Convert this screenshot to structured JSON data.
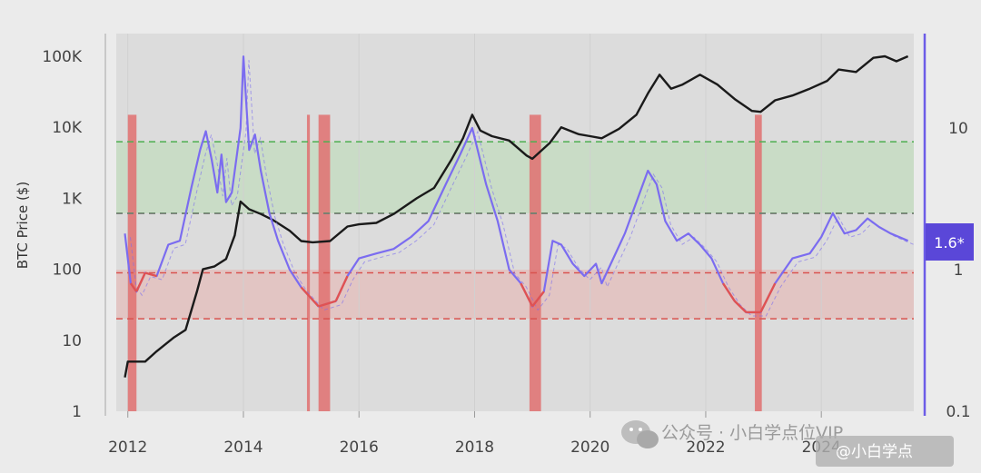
{
  "chart_data": {
    "type": "line",
    "ylabel": "BTC Price ($)",
    "y_left_scale": "log",
    "y_left_ticks": [
      "1",
      "10",
      "100",
      "1K",
      "10K",
      "100K"
    ],
    "y_right_scale": "log",
    "y_right_ticks": [
      "0.1",
      "1",
      "10"
    ],
    "x_ticks": [
      "2012",
      "2014",
      "2016",
      "2018",
      "2020",
      "2022",
      "2024"
    ],
    "current_value_label": "1.6*",
    "bands": {
      "upper_green": [
        2.5,
        8
      ],
      "lower_red": [
        0.45,
        1.0
      ]
    },
    "dashed_levels_right": [
      8,
      2.5,
      0.95,
      0.45
    ],
    "gray_reference_line_right": 1.6,
    "series": [
      {
        "color": "#1a1a1a",
        "axis": "left",
        "x": [
          2011.95,
          2012.0,
          2012.1,
          2012.3,
          2012.5,
          2012.8,
          2013.0,
          2013.2,
          2013.3,
          2013.5,
          2013.7,
          2013.85,
          2013.95,
          2014.1,
          2014.3,
          2014.5,
          2014.8,
          2015.0,
          2015.2,
          2015.5,
          2015.8,
          2016.0,
          2016.3,
          2016.6,
          2017.0,
          2017.3,
          2017.6,
          2017.8,
          2017.96,
          2018.1,
          2018.3,
          2018.6,
          2018.9,
          2019.0,
          2019.3,
          2019.5,
          2019.8,
          2020.0,
          2020.2,
          2020.5,
          2020.8,
          2021.0,
          2021.2,
          2021.4,
          2021.6,
          2021.9,
          2022.2,
          2022.5,
          2022.8,
          2022.95,
          2023.2,
          2023.5,
          2023.8,
          2024.1,
          2024.3,
          2024.6,
          2024.9,
          2025.1,
          2025.3,
          2025.5
        ],
        "y": [
          3,
          5,
          5,
          5,
          7,
          11,
          14,
          50,
          100,
          110,
          140,
          300,
          900,
          700,
          600,
          500,
          350,
          250,
          240,
          250,
          400,
          430,
          450,
          600,
          1000,
          1400,
          3500,
          7000,
          15000,
          9000,
          7500,
          6500,
          4000,
          3600,
          6000,
          10000,
          8000,
          7500,
          7000,
          9500,
          15000,
          30000,
          55000,
          35000,
          40000,
          55000,
          40000,
          25000,
          17000,
          16500,
          24000,
          28000,
          35000,
          45000,
          65000,
          60000,
          95000,
          100000,
          85000,
          100000
        ]
      },
      {
        "color": "#7b6cf0",
        "axis": "right",
        "x": [
          2011.95,
          2012.05,
          2012.15,
          2012.3,
          2012.5,
          2012.7,
          2012.9,
          2013.1,
          2013.25,
          2013.35,
          2013.45,
          2013.55,
          2013.62,
          2013.7,
          2013.8,
          2013.95,
          2014.0,
          2014.1,
          2014.2,
          2014.3,
          2014.45,
          2014.6,
          2014.8,
          2015.0,
          2015.3,
          2015.6,
          2015.8,
          2016.0,
          2016.3,
          2016.6,
          2016.9,
          2017.2,
          2017.5,
          2017.75,
          2017.96,
          2018.2,
          2018.4,
          2018.6,
          2018.8,
          2019.0,
          2019.2,
          2019.35,
          2019.5,
          2019.7,
          2019.9,
          2020.1,
          2020.2,
          2020.4,
          2020.6,
          2020.8,
          2021.0,
          2021.15,
          2021.3,
          2021.5,
          2021.7,
          2021.9,
          2022.1,
          2022.3,
          2022.5,
          2022.7,
          2022.95,
          2023.2,
          2023.5,
          2023.8,
          2024.0,
          2024.2,
          2024.4,
          2024.6,
          2024.8,
          2025.0,
          2025.2,
          2025.5
        ],
        "y": [
          1.8,
          0.8,
          0.7,
          0.95,
          0.9,
          1.5,
          1.6,
          3.8,
          7.0,
          9.5,
          6.0,
          3.5,
          6.5,
          3.0,
          3.5,
          10.0,
          32.0,
          7.0,
          9.0,
          5.0,
          2.5,
          1.6,
          1.0,
          0.75,
          0.55,
          0.6,
          0.9,
          1.2,
          1.3,
          1.4,
          1.7,
          2.2,
          4.0,
          6.5,
          10.0,
          4.0,
          2.2,
          1.0,
          0.8,
          0.55,
          0.7,
          1.6,
          1.5,
          1.1,
          0.9,
          1.1,
          0.8,
          1.2,
          1.8,
          3.0,
          5.0,
          4.0,
          2.2,
          1.6,
          1.8,
          1.5,
          1.2,
          0.8,
          0.6,
          0.5,
          0.5,
          0.8,
          1.2,
          1.3,
          1.7,
          2.5,
          1.8,
          1.9,
          2.3,
          2.0,
          1.8,
          1.6
        ]
      }
    ],
    "highlight_periods": [
      [
        2012.0,
        2012.15
      ],
      [
        2015.1,
        2015.15
      ],
      [
        2015.3,
        2015.5
      ],
      [
        2018.95,
        2019.15
      ],
      [
        2022.85,
        2022.97
      ]
    ]
  },
  "watermark": {
    "primary": "公众号 · 小白学点位VIP",
    "secondary": "@小白学点"
  },
  "colors": {
    "background": "#ebebeb",
    "plot_background": "#dcdcdc",
    "green_band": "#c9dcc6",
    "red_band": "#e2c5c3",
    "green_dash": "#4caf50",
    "red_dash": "#d9534f",
    "gray_dash": "#777777",
    "black_line": "#1a1a1a",
    "purple_line": "#7b6cf0",
    "red_segment": "#e05252",
    "red_bar": "#e07070",
    "badge": "#5a47d8",
    "right_axis": "#6c5ce7"
  }
}
